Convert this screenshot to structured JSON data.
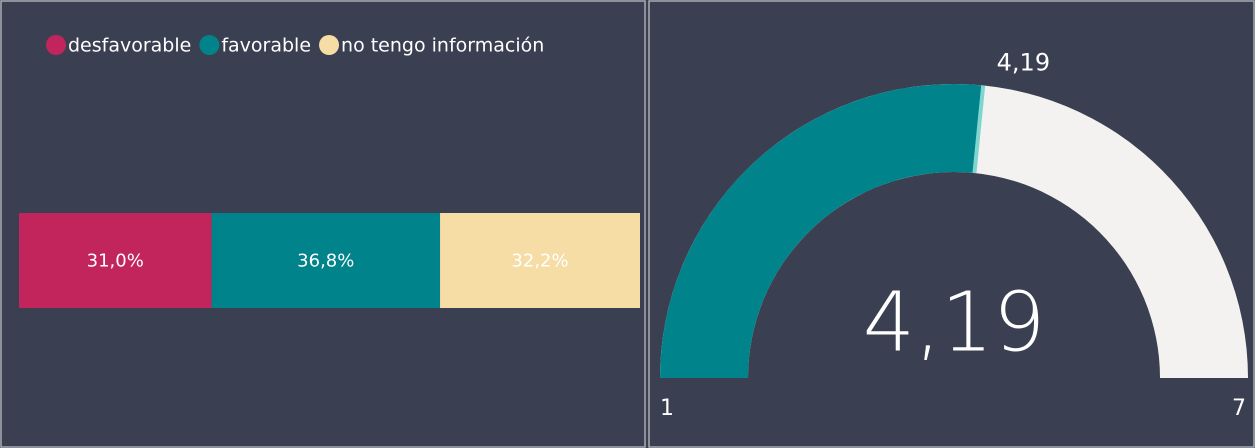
{
  "chart_data": [
    {
      "type": "stacked-bar",
      "series": [
        {
          "name": "desfavorable",
          "color": "#c2255c",
          "values": [
            31.0
          ],
          "value_labels": [
            "31,0%"
          ]
        },
        {
          "name": "favorable",
          "color": "#00838a",
          "values": [
            36.8
          ],
          "value_labels": [
            "36,8%"
          ]
        },
        {
          "name": "no tengo información",
          "color": "#f6dca5",
          "values": [
            32.2
          ],
          "value_labels": [
            "32,2%"
          ]
        }
      ],
      "legend": "top-left"
    },
    {
      "type": "gauge",
      "value": 4.19,
      "value_label": "4,19",
      "target": 4.19,
      "target_label": "4,19",
      "min": 1,
      "max": 7,
      "color": "#00838a",
      "track_color": "#f3f2f0",
      "target_color": "#7fd6cf"
    }
  ]
}
